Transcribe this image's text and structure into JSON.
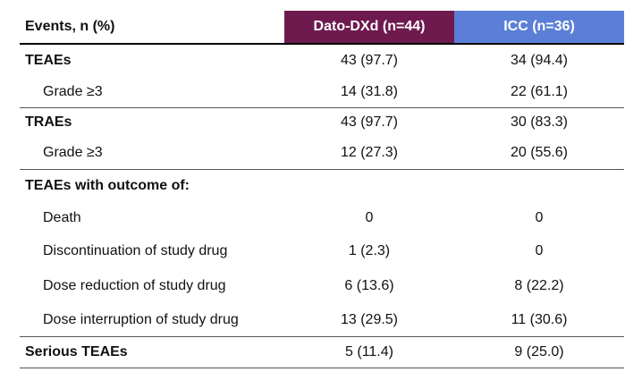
{
  "header": [
    "Events, n (%)",
    "Dato-DXd (n=44)",
    "ICC (n=36)"
  ],
  "rows": [
    [
      "TEAEs",
      "43 (97.7)",
      "34 (94.4)"
    ],
    [
      "Grade ≥3",
      "14 (31.8)",
      "22 (61.1)"
    ],
    [
      "TRAEs",
      "43 (97.7)",
      "30 (83.3)"
    ],
    [
      "Grade ≥3",
      "12 (27.3)",
      "20 (55.6)"
    ],
    [
      "TEAEs with outcome of:"
    ],
    [
      "Death",
      "0",
      "0"
    ],
    [
      "Discontinuation of study drug",
      "1 (2.3)",
      "0"
    ],
    [
      "Dose reduction of study drug",
      "6 (13.6)",
      "8 (22.2)"
    ],
    [
      "Dose interruption of study drug",
      "13 (29.5)",
      "11 (30.6)"
    ],
    [
      "Serious TEAEs",
      "5 (11.4)",
      "9 (25.0)"
    ]
  ]
}
